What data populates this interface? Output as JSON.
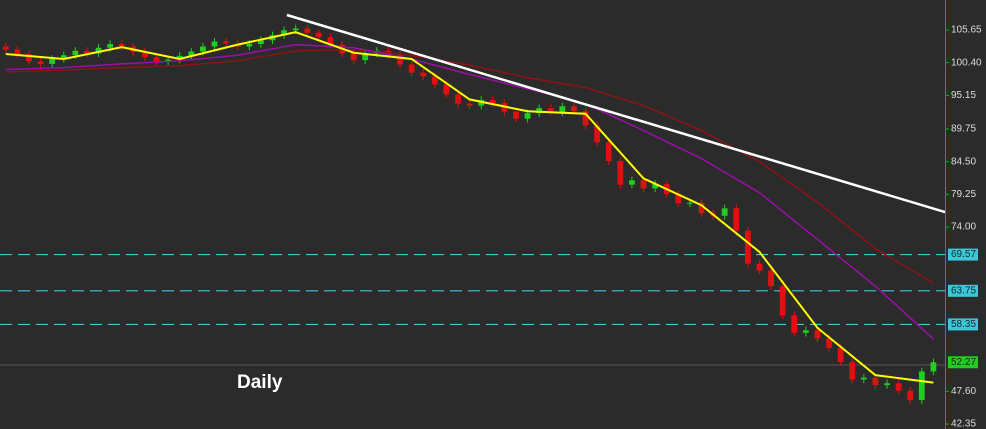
{
  "chart_data": {
    "type": "candlestick",
    "title": "Daily",
    "xlim": [
      -0.5,
      81
    ],
    "ylim": [
      41.55,
      110.47
    ],
    "yticks": [
      105.65,
      {
        "value": 100.4,
        "label": "100.40"
      },
      95.15,
      89.75,
      {
        "value": 84.5,
        "label": "84.50"
      },
      79.25,
      {
        "value": 74,
        "label": "74.00"
      },
      {
        "value": 47.6,
        "label": "47.60"
      },
      42.35
    ],
    "up_color": "#1ecf1e",
    "down_color": "#e01010",
    "candles": {
      "open": [
        103.0,
        102.5,
        101.8,
        100.6,
        100.2,
        101.0,
        101.6,
        102.3,
        101.9,
        102.8,
        103.4,
        103.0,
        102.1,
        101.3,
        100.6,
        100.9,
        101.5,
        102.2,
        103.0,
        103.8,
        103.5,
        103.0,
        103.4,
        104.0,
        104.8,
        105.6,
        105.9,
        105.2,
        104.5,
        103.3,
        101.9,
        100.8,
        101.9,
        102.3,
        101.6,
        100.1,
        98.8,
        98.2,
        96.9,
        95.3,
        93.8,
        93.5,
        94.4,
        93.9,
        92.5,
        91.4,
        92.3,
        93.1,
        92.4,
        93.4,
        92.6,
        90.3,
        87.6,
        84.6,
        80.8,
        81.5,
        80.2,
        80.9,
        79.3,
        77.8,
        77.9,
        76.2,
        75.8,
        77.0,
        73.4,
        68.1,
        67.0,
        64.5,
        59.8,
        57.0,
        57.4,
        56.1,
        54.6,
        52.3,
        49.5,
        49.8,
        48.6,
        48.9,
        47.7,
        46.2,
        50.8
      ],
      "high": [
        103.6,
        103.1,
        102.4,
        101.2,
        101.6,
        102.2,
        102.9,
        102.9,
        103.4,
        104.0,
        104.0,
        103.6,
        102.7,
        101.9,
        101.5,
        102.1,
        102.8,
        103.6,
        104.4,
        104.4,
        104.1,
        104.0,
        104.6,
        105.4,
        106.2,
        106.5,
        106.5,
        105.8,
        105.1,
        103.9,
        102.5,
        102.5,
        102.9,
        102.9,
        102.2,
        100.7,
        99.4,
        98.8,
        97.5,
        95.9,
        94.4,
        95.0,
        95.0,
        94.5,
        93.1,
        92.9,
        93.7,
        93.7,
        94.0,
        94.0,
        93.2,
        90.9,
        88.2,
        85.2,
        82.1,
        82.1,
        81.5,
        81.5,
        79.9,
        78.5,
        78.5,
        76.8,
        77.6,
        77.6,
        74.0,
        68.7,
        67.6,
        65.1,
        60.4,
        58.0,
        58.0,
        56.7,
        55.2,
        52.9,
        50.4,
        50.4,
        49.5,
        49.5,
        48.3,
        51.4,
        52.9
      ],
      "low": [
        101.9,
        101.2,
        100.0,
        99.6,
        99.6,
        100.4,
        101.0,
        101.3,
        101.3,
        102.2,
        102.4,
        101.5,
        100.7,
        100.0,
        100.0,
        100.3,
        100.9,
        101.6,
        102.4,
        102.9,
        102.4,
        102.4,
        102.8,
        103.4,
        104.2,
        105.0,
        104.6,
        103.9,
        102.7,
        101.3,
        100.2,
        100.2,
        101.3,
        101.0,
        99.5,
        98.2,
        97.6,
        96.3,
        94.7,
        93.2,
        92.9,
        92.9,
        93.3,
        91.9,
        90.8,
        90.8,
        91.7,
        91.8,
        91.8,
        92.0,
        89.7,
        87.0,
        84.0,
        80.2,
        80.2,
        79.6,
        79.6,
        78.7,
        77.2,
        77.2,
        75.6,
        75.2,
        75.2,
        72.8,
        67.5,
        66.4,
        63.9,
        59.2,
        56.4,
        56.4,
        55.5,
        54.0,
        51.7,
        48.9,
        48.9,
        48.0,
        48.0,
        47.1,
        45.6,
        45.6,
        50.2
      ],
      "close": [
        102.5,
        101.8,
        100.6,
        100.2,
        101.0,
        101.6,
        102.3,
        101.9,
        102.8,
        103.4,
        103.0,
        102.1,
        101.3,
        100.6,
        100.9,
        101.5,
        102.2,
        103.0,
        103.8,
        103.5,
        103.0,
        103.4,
        104.0,
        104.8,
        105.6,
        105.9,
        105.2,
        104.5,
        103.3,
        101.9,
        100.8,
        101.9,
        102.3,
        101.6,
        100.1,
        98.8,
        98.2,
        96.9,
        95.3,
        93.8,
        93.5,
        94.4,
        93.9,
        92.5,
        91.4,
        92.3,
        93.1,
        92.4,
        93.4,
        92.6,
        90.3,
        87.6,
        84.6,
        80.8,
        81.5,
        80.2,
        80.9,
        79.3,
        77.8,
        77.9,
        76.2,
        75.8,
        77.0,
        73.4,
        68.1,
        67.0,
        64.5,
        59.8,
        57.0,
        57.4,
        56.1,
        54.6,
        52.3,
        49.5,
        49.8,
        48.6,
        48.9,
        47.7,
        46.2,
        50.8,
        52.27
      ]
    },
    "series": [
      {
        "color": "#8b1414",
        "x": [
          0,
          5,
          10,
          15,
          20,
          25,
          30,
          35,
          40,
          45,
          50,
          55,
          60,
          65,
          70,
          75,
          80
        ],
        "values": [
          98.9,
          99.2,
          99.6,
          99.9,
          100.7,
          102.3,
          102.5,
          101.6,
          100.0,
          98.0,
          96.4,
          93.5,
          89.5,
          84.5,
          78.0,
          70.5,
          65.0
        ]
      },
      {
        "color": "#9a0fa8",
        "x": [
          0,
          5,
          10,
          15,
          20,
          25,
          30,
          35,
          40,
          45,
          50,
          55,
          60,
          65,
          70,
          75,
          80
        ],
        "values": [
          99.3,
          99.6,
          100.2,
          100.7,
          101.6,
          103.3,
          102.8,
          101.0,
          98.5,
          96.2,
          93.8,
          89.5,
          85.0,
          79.5,
          72.0,
          64.5,
          56.0
        ]
      },
      {
        "color": "#ffff00",
        "x": [
          0,
          5,
          10,
          15,
          20,
          25,
          30,
          35,
          40,
          45,
          50,
          55,
          60,
          65,
          70,
          75,
          80
        ],
        "values": [
          101.8,
          101.0,
          102.9,
          101.0,
          103.3,
          105.3,
          102.0,
          101.0,
          94.5,
          92.6,
          92.2,
          81.8,
          77.5,
          70.0,
          57.8,
          50.2,
          49.0
        ]
      }
    ],
    "trendline": {
      "color": "#ffffff",
      "x": [
        24.24,
        81
      ],
      "y": [
        108.06,
        76.41
      ]
    },
    "levels": {
      "color": "#3fc6d6",
      "values": [
        69.57,
        63.75,
        58.35
      ]
    },
    "last_price": 52.27,
    "last_price_color": "#22cc22"
  }
}
